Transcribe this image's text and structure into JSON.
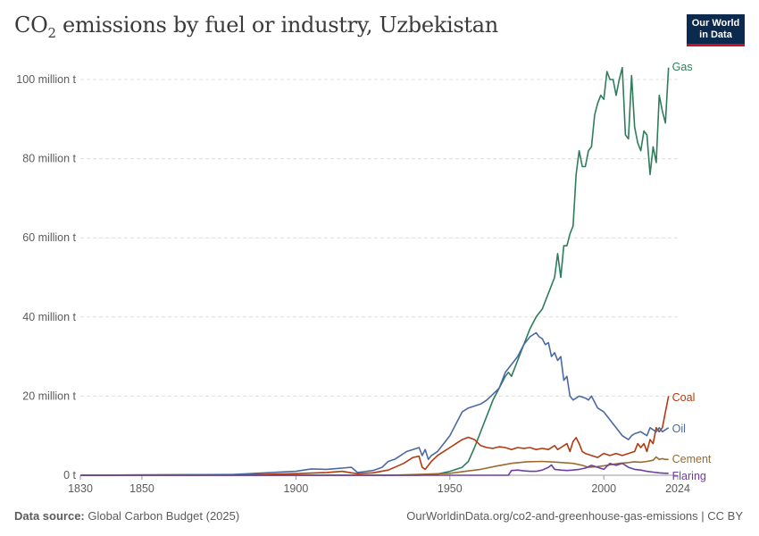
{
  "title": {
    "main": "CO",
    "sub": "2",
    "rest": " emissions by fuel or industry, Uzbekistan"
  },
  "logo": {
    "line1": "Our World",
    "line2": "in Data"
  },
  "footer": {
    "source_label": "Data source:",
    "source_text": " Global Carbon Budget (2025)",
    "link": "OurWorldinData.org/co2-and-greenhouse-gas-emissions | CC BY"
  },
  "colors": {
    "gas": "#2e7d5b",
    "coal": "#b33a10",
    "oil": "#4b6aa3",
    "cement": "#9a6b2e",
    "flaring": "#6b3fa0",
    "grid": "#dddddd",
    "axis": "#999999"
  },
  "chart_data": {
    "type": "line",
    "title": "CO₂ emissions by fuel or industry, Uzbekistan",
    "xlabel": "",
    "ylabel": "",
    "xlim": [
      1830,
      2024
    ],
    "ylim": [
      0,
      100
    ],
    "x_ticks": [
      1830,
      1850,
      1900,
      1950,
      2000,
      2024
    ],
    "y_ticks": [
      {
        "value": 0,
        "label": "0 t"
      },
      {
        "value": 20,
        "label": "20 million t"
      },
      {
        "value": 40,
        "label": "40 million t"
      },
      {
        "value": 60,
        "label": "60 million t"
      },
      {
        "value": 80,
        "label": "80 million t"
      },
      {
        "value": 100,
        "label": "100 million t"
      }
    ],
    "unit": "million t",
    "series": [
      {
        "name": "Gas",
        "key": "gas",
        "points": [
          [
            1830,
            0
          ],
          [
            1900,
            0
          ],
          [
            1940,
            0
          ],
          [
            1946,
            0.3
          ],
          [
            1950,
            1.0
          ],
          [
            1954,
            2.0
          ],
          [
            1956,
            3.5
          ],
          [
            1958,
            7
          ],
          [
            1960,
            11
          ],
          [
            1962,
            15
          ],
          [
            1964,
            19
          ],
          [
            1966,
            22
          ],
          [
            1968,
            25
          ],
          [
            1969,
            26
          ],
          [
            1970,
            25
          ],
          [
            1972,
            29
          ],
          [
            1974,
            33
          ],
          [
            1976,
            37
          ],
          [
            1978,
            40
          ],
          [
            1980,
            42
          ],
          [
            1982,
            46
          ],
          [
            1984,
            50
          ],
          [
            1985,
            56
          ],
          [
            1986,
            50
          ],
          [
            1987,
            58
          ],
          [
            1988,
            58
          ],
          [
            1989,
            61
          ],
          [
            1990,
            63
          ],
          [
            1991,
            76
          ],
          [
            1992,
            82
          ],
          [
            1993,
            78
          ],
          [
            1994,
            78
          ],
          [
            1995,
            82
          ],
          [
            1996,
            83
          ],
          [
            1997,
            91
          ],
          [
            1998,
            94
          ],
          [
            1999,
            96
          ],
          [
            2000,
            95
          ],
          [
            2001,
            102
          ],
          [
            2002,
            100
          ],
          [
            2003,
            100
          ],
          [
            2004,
            96
          ],
          [
            2005,
            100
          ],
          [
            2006,
            103
          ],
          [
            2007,
            86
          ],
          [
            2008,
            85
          ],
          [
            2009,
            101
          ],
          [
            2010,
            88
          ],
          [
            2011,
            84
          ],
          [
            2012,
            82
          ],
          [
            2013,
            87
          ],
          [
            2014,
            86
          ],
          [
            2015,
            76
          ],
          [
            2016,
            83
          ],
          [
            2017,
            79
          ],
          [
            2018,
            96
          ],
          [
            2019,
            92
          ],
          [
            2020,
            89
          ],
          [
            2021,
            103
          ]
        ]
      },
      {
        "name": "Coal",
        "key": "coal",
        "points": [
          [
            1830,
            0
          ],
          [
            1890,
            0.2
          ],
          [
            1900,
            0.4
          ],
          [
            1910,
            0.7
          ],
          [
            1915,
            1.0
          ],
          [
            1918,
            0.6
          ],
          [
            1920,
            0.4
          ],
          [
            1925,
            0.6
          ],
          [
            1930,
            1.3
          ],
          [
            1935,
            3.0
          ],
          [
            1938,
            4.5
          ],
          [
            1940,
            4.8
          ],
          [
            1941,
            2.0
          ],
          [
            1942,
            1.5
          ],
          [
            1944,
            3.5
          ],
          [
            1946,
            5.0
          ],
          [
            1948,
            6.0
          ],
          [
            1950,
            7.0
          ],
          [
            1952,
            8.0
          ],
          [
            1954,
            9.0
          ],
          [
            1956,
            9.6
          ],
          [
            1958,
            9.0
          ],
          [
            1960,
            7.5
          ],
          [
            1962,
            7.0
          ],
          [
            1964,
            6.8
          ],
          [
            1966,
            7.2
          ],
          [
            1968,
            7.0
          ],
          [
            1970,
            6.5
          ],
          [
            1972,
            7.0
          ],
          [
            1974,
            6.8
          ],
          [
            1976,
            7.0
          ],
          [
            1978,
            6.5
          ],
          [
            1980,
            6.8
          ],
          [
            1982,
            6.5
          ],
          [
            1984,
            7.5
          ],
          [
            1985,
            6.5
          ],
          [
            1986,
            7.0
          ],
          [
            1988,
            8.0
          ],
          [
            1989,
            6.0
          ],
          [
            1990,
            8.5
          ],
          [
            1991,
            9.5
          ],
          [
            1992,
            8.0
          ],
          [
            1993,
            6.0
          ],
          [
            1994,
            5.5
          ],
          [
            1996,
            5.0
          ],
          [
            1998,
            4.5
          ],
          [
            2000,
            5.5
          ],
          [
            2002,
            5.0
          ],
          [
            2004,
            5.5
          ],
          [
            2006,
            5.0
          ],
          [
            2008,
            5.5
          ],
          [
            2010,
            6.0
          ],
          [
            2011,
            8.0
          ],
          [
            2012,
            7.0
          ],
          [
            2013,
            8.0
          ],
          [
            2014,
            6.0
          ],
          [
            2015,
            9.0
          ],
          [
            2016,
            8.0
          ],
          [
            2017,
            12.0
          ],
          [
            2018,
            11.0
          ],
          [
            2019,
            12.0
          ],
          [
            2020,
            16.0
          ],
          [
            2021,
            20.0
          ]
        ]
      },
      {
        "name": "Oil",
        "key": "oil",
        "points": [
          [
            1830,
            0
          ],
          [
            1880,
            0.2
          ],
          [
            1890,
            0.6
          ],
          [
            1900,
            1.0
          ],
          [
            1905,
            1.6
          ],
          [
            1910,
            1.5
          ],
          [
            1915,
            1.8
          ],
          [
            1918,
            2.0
          ],
          [
            1920,
            0.7
          ],
          [
            1922,
            0.9
          ],
          [
            1925,
            1.2
          ],
          [
            1928,
            2.0
          ],
          [
            1930,
            3.5
          ],
          [
            1932,
            4.0
          ],
          [
            1934,
            5.0
          ],
          [
            1936,
            6.0
          ],
          [
            1938,
            6.5
          ],
          [
            1940,
            7.0
          ],
          [
            1941,
            5.0
          ],
          [
            1942,
            6.5
          ],
          [
            1943,
            4.0
          ],
          [
            1944,
            5.0
          ],
          [
            1946,
            6.0
          ],
          [
            1948,
            8.0
          ],
          [
            1950,
            10.0
          ],
          [
            1952,
            13.0
          ],
          [
            1954,
            16.0
          ],
          [
            1956,
            17.0
          ],
          [
            1958,
            17.5
          ],
          [
            1960,
            18.0
          ],
          [
            1962,
            19.0
          ],
          [
            1964,
            20.5
          ],
          [
            1966,
            22.0
          ],
          [
            1968,
            26.0
          ],
          [
            1970,
            28.0
          ],
          [
            1972,
            30.0
          ],
          [
            1974,
            33.0
          ],
          [
            1976,
            35.0
          ],
          [
            1977,
            35.5
          ],
          [
            1978,
            36.0
          ],
          [
            1979,
            35.0
          ],
          [
            1980,
            34.5
          ],
          [
            1981,
            33.0
          ],
          [
            1982,
            33.5
          ],
          [
            1983,
            30.0
          ],
          [
            1984,
            31.0
          ],
          [
            1985,
            29.0
          ],
          [
            1986,
            30.0
          ],
          [
            1987,
            24.0
          ],
          [
            1988,
            25.0
          ],
          [
            1989,
            20.0
          ],
          [
            1990,
            19.0
          ],
          [
            1992,
            20.0
          ],
          [
            1994,
            19.5
          ],
          [
            1995,
            19.0
          ],
          [
            1996,
            20.0
          ],
          [
            1998,
            17.0
          ],
          [
            2000,
            16.0
          ],
          [
            2002,
            14.0
          ],
          [
            2004,
            12.0
          ],
          [
            2006,
            10.0
          ],
          [
            2008,
            9.0
          ],
          [
            2009,
            10.0
          ],
          [
            2010,
            10.5
          ],
          [
            2012,
            11.0
          ],
          [
            2014,
            10.0
          ],
          [
            2015,
            12.0
          ],
          [
            2016,
            11.5
          ],
          [
            2017,
            11.0
          ],
          [
            2018,
            12.0
          ],
          [
            2019,
            11.0
          ],
          [
            2020,
            11.5
          ],
          [
            2021,
            12.0
          ]
        ]
      },
      {
        "name": "Cement",
        "key": "cement",
        "points": [
          [
            1830,
            0
          ],
          [
            1930,
            0
          ],
          [
            1940,
            0.2
          ],
          [
            1950,
            0.5
          ],
          [
            1955,
            1.0
          ],
          [
            1960,
            1.5
          ],
          [
            1965,
            2.3
          ],
          [
            1970,
            3.0
          ],
          [
            1975,
            3.4
          ],
          [
            1980,
            3.5
          ],
          [
            1985,
            3.3
          ],
          [
            1990,
            3.0
          ],
          [
            1993,
            2.5
          ],
          [
            1995,
            2.0
          ],
          [
            1998,
            2.2
          ],
          [
            2000,
            2.4
          ],
          [
            2005,
            3.0
          ],
          [
            2008,
            3.2
          ],
          [
            2010,
            3.4
          ],
          [
            2012,
            3.3
          ],
          [
            2014,
            3.5
          ],
          [
            2016,
            3.8
          ],
          [
            2017,
            4.6
          ],
          [
            2018,
            4.0
          ],
          [
            2019,
            4.2
          ],
          [
            2020,
            4.0
          ],
          [
            2021,
            4.0
          ]
        ]
      },
      {
        "name": "Flaring",
        "key": "flaring",
        "points": [
          [
            1830,
            0
          ],
          [
            1969,
            0
          ],
          [
            1970,
            1.2
          ],
          [
            1972,
            1.3
          ],
          [
            1974,
            1.1
          ],
          [
            1976,
            1.0
          ],
          [
            1978,
            1.0
          ],
          [
            1980,
            1.3
          ],
          [
            1982,
            2.0
          ],
          [
            1983,
            2.6
          ],
          [
            1984,
            1.5
          ],
          [
            1986,
            1.3
          ],
          [
            1988,
            1.2
          ],
          [
            1990,
            1.3
          ],
          [
            1992,
            1.5
          ],
          [
            1994,
            1.8
          ],
          [
            1996,
            2.5
          ],
          [
            1998,
            2.0
          ],
          [
            2000,
            1.5
          ],
          [
            2002,
            3.0
          ],
          [
            2004,
            2.5
          ],
          [
            2006,
            3.0
          ],
          [
            2008,
            2.0
          ],
          [
            2010,
            1.5
          ],
          [
            2012,
            1.3
          ],
          [
            2014,
            1.0
          ],
          [
            2016,
            0.8
          ],
          [
            2018,
            0.6
          ],
          [
            2020,
            0.5
          ],
          [
            2021,
            0.5
          ]
        ]
      }
    ]
  }
}
